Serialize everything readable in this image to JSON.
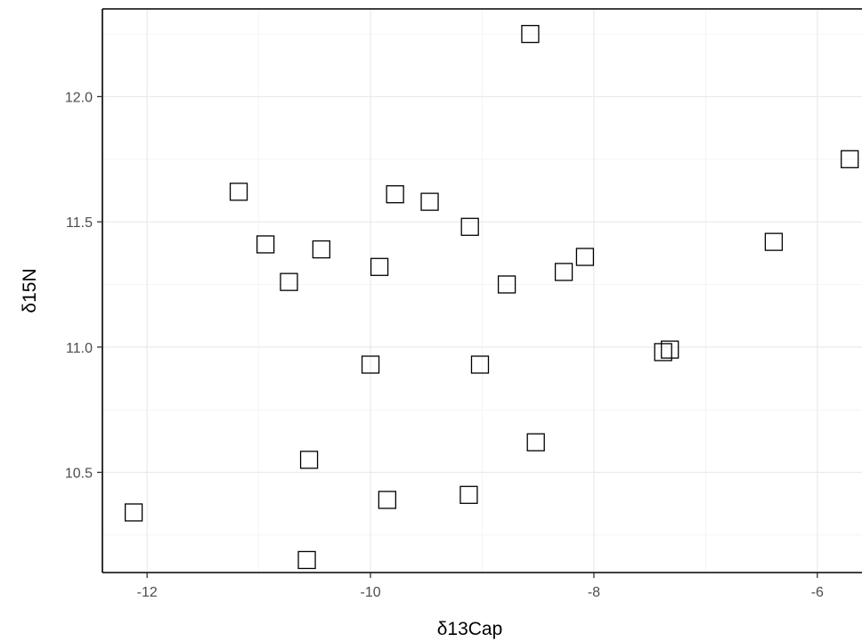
{
  "chart_data": {
    "type": "scatter",
    "xlabel": "δ13Cap",
    "ylabel": "δ15N",
    "xlim": [
      -12.4,
      -5.6
    ],
    "ylim": [
      10.1,
      12.35
    ],
    "x_ticks": [
      -12,
      -10,
      -8,
      -6
    ],
    "x_tick_labels": [
      "-12",
      "-10",
      "-8",
      "-6"
    ],
    "y_ticks": [
      10.5,
      11.0,
      11.5,
      12.0
    ],
    "y_tick_labels": [
      "10.5",
      "11.0",
      "11.5",
      "12.0"
    ],
    "grid": true,
    "marker": "open-square",
    "points": [
      {
        "x": -8.57,
        "y": 12.25
      },
      {
        "x": -5.71,
        "y": 11.75
      },
      {
        "x": -11.18,
        "y": 11.62
      },
      {
        "x": -9.78,
        "y": 11.61
      },
      {
        "x": -9.47,
        "y": 11.58
      },
      {
        "x": -9.11,
        "y": 11.48
      },
      {
        "x": -6.39,
        "y": 11.42
      },
      {
        "x": -10.94,
        "y": 11.41
      },
      {
        "x": -10.44,
        "y": 11.39
      },
      {
        "x": -8.08,
        "y": 11.36
      },
      {
        "x": -9.92,
        "y": 11.32
      },
      {
        "x": -8.27,
        "y": 11.3
      },
      {
        "x": -10.73,
        "y": 11.26
      },
      {
        "x": -8.78,
        "y": 11.25
      },
      {
        "x": -7.32,
        "y": 10.99
      },
      {
        "x": -7.38,
        "y": 10.98
      },
      {
        "x": -10.0,
        "y": 10.93
      },
      {
        "x": -9.02,
        "y": 10.93
      },
      {
        "x": -8.52,
        "y": 10.62
      },
      {
        "x": -10.55,
        "y": 10.55
      },
      {
        "x": -9.12,
        "y": 10.41
      },
      {
        "x": -9.85,
        "y": 10.39
      },
      {
        "x": -12.12,
        "y": 10.34
      },
      {
        "x": -10.57,
        "y": 10.15
      }
    ]
  }
}
